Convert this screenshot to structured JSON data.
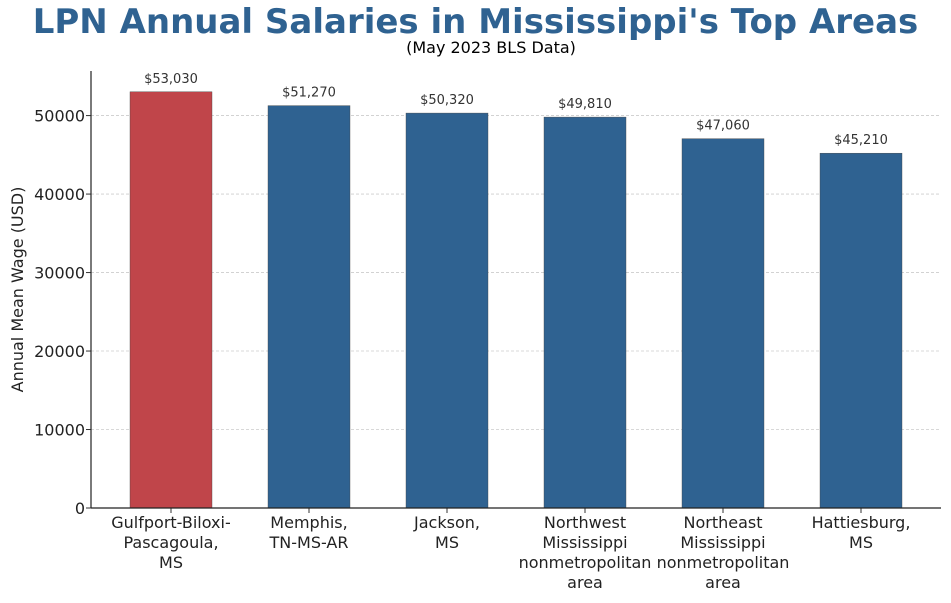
{
  "chart_data": {
    "type": "bar",
    "title": "LPN Annual Salaries in Mississippi's Top Areas",
    "subtitle": "(May 2023 BLS Data)",
    "ylabel": "Annual Mean Wage (USD)",
    "xlabel": "",
    "categories": [
      [
        "Gulfport-Biloxi-",
        "Pascagoula,",
        "MS"
      ],
      [
        "Memphis,",
        "TN-MS-AR"
      ],
      [
        "Jackson,",
        "MS"
      ],
      [
        "Northwest",
        "Mississippi",
        "nonmetropolitan",
        "area"
      ],
      [
        "Northeast",
        "Mississippi",
        "nonmetropolitan",
        "area"
      ],
      [
        "Hattiesburg,",
        "MS"
      ]
    ],
    "values": [
      53030,
      51270,
      50320,
      49810,
      47060,
      45210
    ],
    "value_labels": [
      "$53,030",
      "$51,270",
      "$50,320",
      "$49,810",
      "$47,060",
      "$45,210"
    ],
    "yticks": [
      0,
      10000,
      20000,
      30000,
      40000,
      50000
    ],
    "ytick_labels": [
      "0",
      "10000",
      "20000",
      "30000",
      "40000",
      "50000"
    ],
    "ylim": [
      0,
      55681
    ],
    "grid": "horizontal dashed",
    "colors": {
      "highlight": "#c0454a",
      "bar": "#2f6291",
      "title": "#2f6291",
      "grid": "#cccccc"
    },
    "highlight_index": 0
  }
}
